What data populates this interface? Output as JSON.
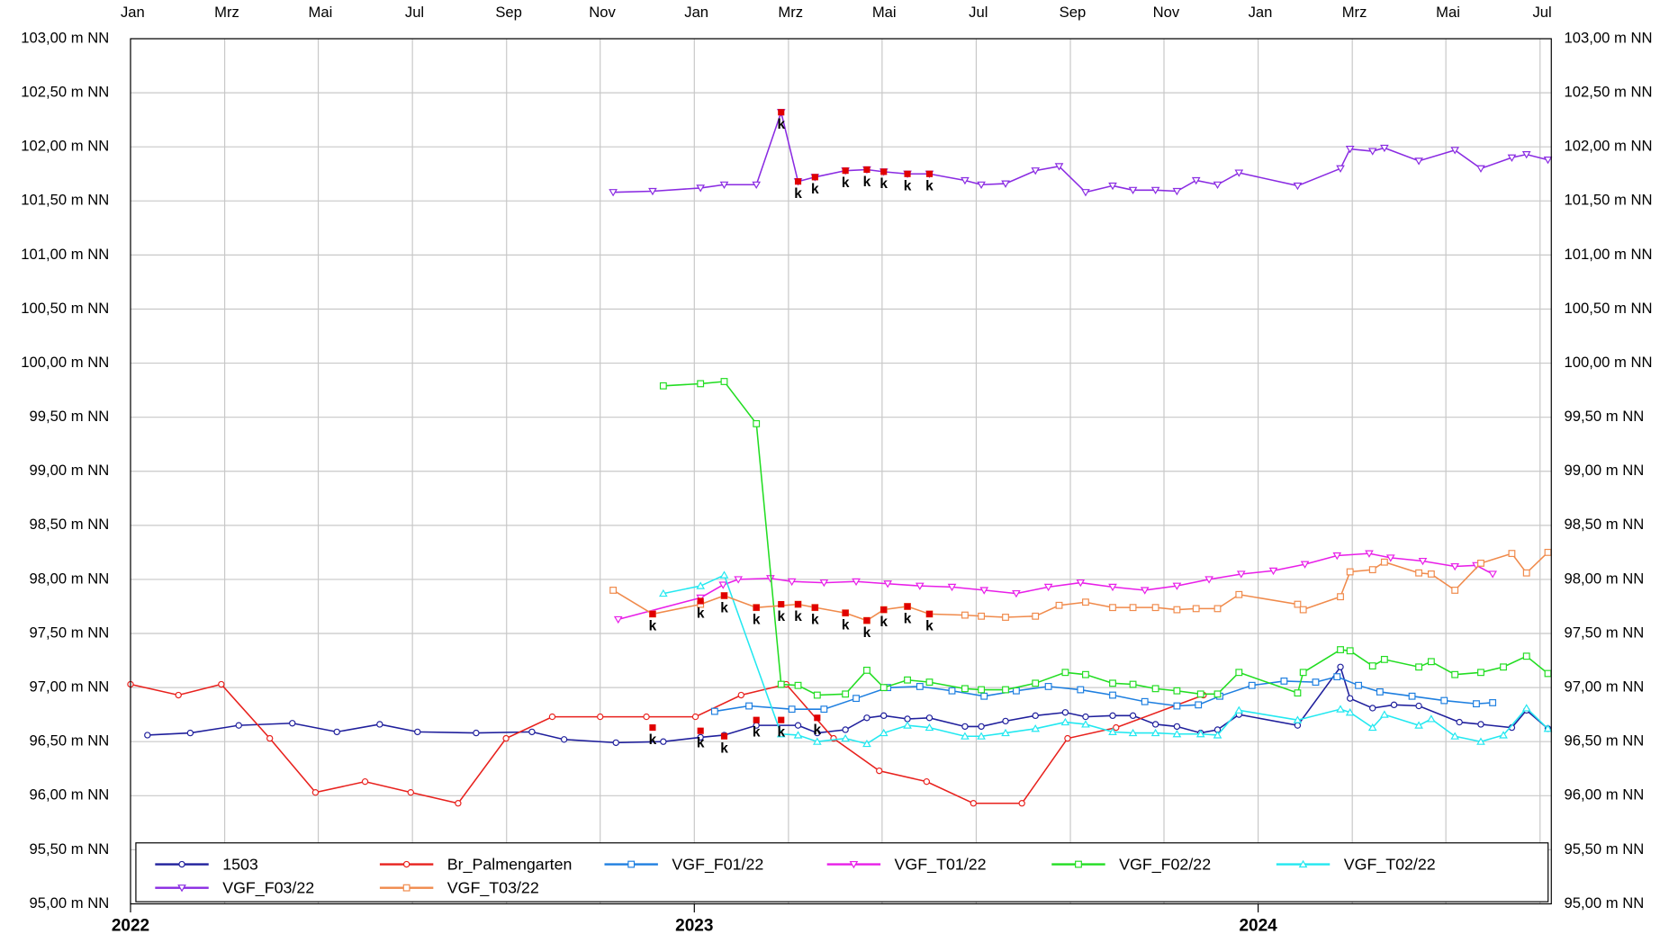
{
  "chart_data": {
    "type": "line",
    "xlim": [
      2022,
      2024.52
    ],
    "ylim": [
      95,
      103
    ],
    "grid": true,
    "xticks": [
      {
        "value": 2022,
        "label": "Jan"
      },
      {
        "value": 2022.167,
        "label": "Mrz"
      },
      {
        "value": 2022.333,
        "label": "Mai"
      },
      {
        "value": 2022.5,
        "label": "Jul"
      },
      {
        "value": 2022.667,
        "label": "Sep"
      },
      {
        "value": 2022.833,
        "label": "Nov"
      },
      {
        "value": 2023,
        "label": "Jan"
      },
      {
        "value": 2023.167,
        "label": "Mrz"
      },
      {
        "value": 2023.333,
        "label": "Mai"
      },
      {
        "value": 2023.5,
        "label": "Jul"
      },
      {
        "value": 2023.667,
        "label": "Sep"
      },
      {
        "value": 2023.833,
        "label": "Nov"
      },
      {
        "value": 2024,
        "label": "Jan"
      },
      {
        "value": 2024.167,
        "label": "Mrz"
      },
      {
        "value": 2024.333,
        "label": "Mai"
      },
      {
        "value": 2024.5,
        "label": "Jul"
      }
    ],
    "year_ticks": [
      2022,
      2023,
      2024
    ],
    "yticks": [
      {
        "value": 95,
        "label": "95,00 m NN"
      },
      {
        "value": 95.5,
        "label": "95,50 m NN"
      },
      {
        "value": 96,
        "label": "96,00 m NN"
      },
      {
        "value": 96.5,
        "label": "96,50 m NN"
      },
      {
        "value": 97,
        "label": "97,00 m NN"
      },
      {
        "value": 97.5,
        "label": "97,50 m NN"
      },
      {
        "value": 98,
        "label": "98,00 m NN"
      },
      {
        "value": 98.5,
        "label": "98,50 m NN"
      },
      {
        "value": 99,
        "label": "99,00 m NN"
      },
      {
        "value": 99.5,
        "label": "99,50 m NN"
      },
      {
        "value": 100,
        "label": "100,00 m NN"
      },
      {
        "value": 100.5,
        "label": "100,50 m NN"
      },
      {
        "value": 101,
        "label": "101,00 m NN"
      },
      {
        "value": 101.5,
        "label": "101,50 m NN"
      },
      {
        "value": 102,
        "label": "102,00 m NN"
      },
      {
        "value": 102.5,
        "label": "102,50 m NN"
      },
      {
        "value": 103,
        "label": "103,00 m NN"
      }
    ],
    "series": [
      {
        "name": "1503",
        "color": "#1f1f9c",
        "marker": "circle",
        "x": [
          2022.03,
          2022.106,
          2022.192,
          2022.287,
          2022.366,
          2022.442,
          2022.509,
          2022.613,
          2022.712,
          2022.769,
          2022.861,
          2022.945,
          2023.011,
          2023.053,
          2023.11,
          2023.184,
          2023.218,
          2023.268,
          2023.306,
          2023.336,
          2023.378,
          2023.417,
          2023.48,
          2023.509,
          2023.552,
          2023.605,
          2023.658,
          2023.694,
          2023.742,
          2023.778,
          2023.818,
          2023.856,
          2023.898,
          2023.928,
          2023.966,
          2024.07,
          2024.146,
          2024.163,
          2024.203,
          2024.241,
          2024.285,
          2024.357,
          2024.395,
          2024.45,
          2024.476,
          2024.514
        ],
        "values": [
          96.56,
          96.58,
          96.65,
          96.67,
          96.59,
          96.66,
          96.59,
          96.58,
          96.59,
          96.52,
          96.49,
          96.5,
          96.54,
          96.56,
          96.65,
          96.65,
          96.58,
          96.61,
          96.72,
          96.74,
          96.71,
          96.72,
          96.64,
          96.64,
          96.69,
          96.74,
          96.77,
          96.73,
          96.74,
          96.74,
          96.66,
          96.64,
          96.58,
          96.61,
          96.75,
          96.65,
          97.19,
          96.9,
          96.81,
          96.84,
          96.83,
          96.68,
          96.66,
          96.63,
          96.79,
          96.62
        ]
      },
      {
        "name": "Br_Palmengarten",
        "color": "#e8211d",
        "marker": "circle",
        "x": [
          2022.0,
          2022.085,
          2022.161,
          2022.247,
          2022.328,
          2022.416,
          2022.497,
          2022.581,
          2022.666,
          2022.748,
          2022.833,
          2022.915,
          2023.002,
          2023.083,
          2023.163,
          2023.247,
          2023.328,
          2023.412,
          2023.495,
          2023.581,
          2023.662,
          2023.748,
          2023.903
        ],
        "values": [
          97.03,
          96.93,
          97.03,
          96.53,
          96.03,
          96.13,
          96.03,
          95.93,
          96.53,
          96.73,
          96.73,
          96.73,
          96.73,
          96.93,
          97.03,
          96.53,
          96.23,
          96.13,
          95.93,
          95.93,
          96.53,
          96.63,
          96.93
        ]
      },
      {
        "name": "VGF_F01/22",
        "color": "#1e7fe0",
        "marker": "square",
        "x": [
          2023.036,
          2023.097,
          2023.173,
          2023.23,
          2023.287,
          2023.343,
          2023.4,
          2023.457,
          2023.514,
          2023.571,
          2023.628,
          2023.685,
          2023.742,
          2023.799,
          2023.856,
          2023.894,
          2023.932,
          2023.989,
          2024.046,
          2024.102,
          2024.14,
          2024.178,
          2024.216,
          2024.273,
          2024.33,
          2024.387,
          2024.416
        ],
        "values": [
          96.78,
          96.83,
          96.8,
          96.8,
          96.9,
          97.0,
          97.01,
          96.97,
          96.92,
          96.97,
          97.01,
          96.98,
          96.93,
          96.87,
          96.83,
          96.84,
          96.92,
          97.02,
          97.06,
          97.05,
          97.1,
          97.02,
          96.96,
          96.92,
          96.88,
          96.85,
          96.86
        ]
      },
      {
        "name": "VGF_T01/22",
        "color": "#e81ee8",
        "marker": "tri-down",
        "x": [
          2022.865,
          2023.011,
          2023.051,
          2023.078,
          2023.135,
          2023.173,
          2023.23,
          2023.287,
          2023.343,
          2023.4,
          2023.457,
          2023.514,
          2023.571,
          2023.628,
          2023.685,
          2023.742,
          2023.799,
          2023.856,
          2023.913,
          2023.97,
          2024.027,
          2024.083,
          2024.14,
          2024.197,
          2024.235,
          2024.292,
          2024.349,
          2024.387,
          2024.416
        ],
        "values": [
          97.63,
          97.83,
          97.95,
          98.0,
          98.01,
          97.98,
          97.97,
          97.98,
          97.96,
          97.94,
          97.93,
          97.9,
          97.87,
          97.93,
          97.97,
          97.93,
          97.9,
          97.94,
          98.0,
          98.05,
          98.08,
          98.14,
          98.22,
          98.24,
          98.2,
          98.17,
          98.12,
          98.13,
          98.05
        ]
      },
      {
        "name": "VGF_F02/22",
        "color": "#22dd22",
        "marker": "square",
        "x": [
          2022.945,
          2023.011,
          2023.053,
          2023.11,
          2023.154,
          2023.184,
          2023.218,
          2023.268,
          2023.306,
          2023.336,
          2023.378,
          2023.417,
          2023.48,
          2023.509,
          2023.552,
          2023.605,
          2023.658,
          2023.694,
          2023.742,
          2023.778,
          2023.818,
          2023.856,
          2023.898,
          2023.928,
          2023.966,
          2024.07,
          2024.08,
          2024.146,
          2024.163,
          2024.203,
          2024.224,
          2024.285,
          2024.307,
          2024.349,
          2024.395,
          2024.435,
          2024.476,
          2024.514
        ],
        "values": [
          99.79,
          99.81,
          99.83,
          99.44,
          97.03,
          97.02,
          96.93,
          96.94,
          97.16,
          97.0,
          97.07,
          97.05,
          96.99,
          96.98,
          96.98,
          97.04,
          97.14,
          97.12,
          97.04,
          97.03,
          96.99,
          96.97,
          96.94,
          96.94,
          97.14,
          96.95,
          97.14,
          97.35,
          97.34,
          97.2,
          97.26,
          97.19,
          97.24,
          97.12,
          97.14,
          97.19,
          97.29,
          97.13
        ]
      },
      {
        "name": "VGF_T02/22",
        "color": "#22e8f0",
        "marker": "tri-up",
        "x": [
          2022.945,
          2023.011,
          2023.053,
          2023.154,
          2023.184,
          2023.218,
          2023.268,
          2023.306,
          2023.336,
          2023.378,
          2023.417,
          2023.48,
          2023.509,
          2023.552,
          2023.605,
          2023.658,
          2023.694,
          2023.742,
          2023.778,
          2023.818,
          2023.856,
          2023.898,
          2023.928,
          2023.966,
          2024.07,
          2024.146,
          2024.163,
          2024.203,
          2024.224,
          2024.285,
          2024.307,
          2024.349,
          2024.395,
          2024.435,
          2024.476,
          2024.514
        ],
        "values": [
          97.87,
          97.94,
          98.04,
          96.57,
          96.56,
          96.5,
          96.53,
          96.48,
          96.58,
          96.65,
          96.63,
          96.55,
          96.55,
          96.58,
          96.62,
          96.68,
          96.66,
          96.59,
          96.58,
          96.58,
          96.57,
          96.57,
          96.56,
          96.79,
          96.7,
          96.8,
          96.77,
          96.63,
          96.75,
          96.65,
          96.71,
          96.55,
          96.5,
          96.56,
          96.81,
          96.62
        ]
      },
      {
        "name": "VGF_F03/22",
        "color": "#8a2be2",
        "marker": "tri-down",
        "x": [
          2022.856,
          2022.926,
          2023.011,
          2023.053,
          2023.11,
          2023.154,
          2023.184,
          2023.214,
          2023.268,
          2023.306,
          2023.336,
          2023.378,
          2023.417,
          2023.48,
          2023.509,
          2023.552,
          2023.605,
          2023.647,
          2023.694,
          2023.742,
          2023.778,
          2023.818,
          2023.856,
          2023.89,
          2023.928,
          2023.966,
          2024.07,
          2024.146,
          2024.163,
          2024.203,
          2024.224,
          2024.285,
          2024.349,
          2024.395,
          2024.45,
          2024.476,
          2024.514
        ],
        "values": [
          101.58,
          101.59,
          101.62,
          101.65,
          101.65,
          102.32,
          101.68,
          101.72,
          101.78,
          101.79,
          101.77,
          101.75,
          101.75,
          101.69,
          101.65,
          101.66,
          101.78,
          101.82,
          101.58,
          101.64,
          101.6,
          101.6,
          101.59,
          101.69,
          101.65,
          101.76,
          101.64,
          101.8,
          101.98,
          101.96,
          101.99,
          101.87,
          101.97,
          101.8,
          101.9,
          101.93,
          101.88
        ]
      },
      {
        "name": "VGF_T03/22",
        "color": "#f08a4b",
        "marker": "square",
        "x": [
          2022.856,
          2022.926,
          2023.011,
          2023.053,
          2023.11,
          2023.184,
          2023.214,
          2023.268,
          2023.306,
          2023.336,
          2023.378,
          2023.417,
          2023.48,
          2023.509,
          2023.552,
          2023.605,
          2023.647,
          2023.694,
          2023.742,
          2023.778,
          2023.818,
          2023.856,
          2023.89,
          2023.928,
          2023.966,
          2024.07,
          2024.08,
          2024.146,
          2024.163,
          2024.203,
          2024.224,
          2024.285,
          2024.307,
          2024.349,
          2024.395,
          2024.45,
          2024.476,
          2024.514
        ],
        "values": [
          97.9,
          97.68,
          97.77,
          97.85,
          97.74,
          97.77,
          97.74,
          97.69,
          97.62,
          97.72,
          97.75,
          97.68,
          97.67,
          97.66,
          97.65,
          97.66,
          97.76,
          97.79,
          97.74,
          97.74,
          97.74,
          97.72,
          97.73,
          97.73,
          97.86,
          97.77,
          97.72,
          97.84,
          98.07,
          98.09,
          98.16,
          98.06,
          98.05,
          97.9,
          98.15,
          98.24,
          98.06,
          98.25
        ]
      }
    ],
    "annotations": [
      {
        "text": "k",
        "x": 2023.154,
        "y": 102.32
      },
      {
        "text": "k",
        "x": 2023.184,
        "y": 101.68
      },
      {
        "text": "k",
        "x": 2023.214,
        "y": 101.72
      },
      {
        "text": "k",
        "x": 2023.268,
        "y": 101.78
      },
      {
        "text": "k",
        "x": 2023.306,
        "y": 101.79
      },
      {
        "text": "k",
        "x": 2023.336,
        "y": 101.77
      },
      {
        "text": "k",
        "x": 2023.378,
        "y": 101.75
      },
      {
        "text": "k",
        "x": 2023.417,
        "y": 101.75
      },
      {
        "text": "k",
        "x": 2022.926,
        "y": 97.68
      },
      {
        "text": "k",
        "x": 2023.011,
        "y": 97.8
      },
      {
        "text": "k",
        "x": 2023.053,
        "y": 97.85
      },
      {
        "text": "k",
        "x": 2023.11,
        "y": 97.74
      },
      {
        "text": "k",
        "x": 2023.154,
        "y": 97.77
      },
      {
        "text": "k",
        "x": 2023.184,
        "y": 97.77
      },
      {
        "text": "k",
        "x": 2023.214,
        "y": 97.74
      },
      {
        "text": "k",
        "x": 2023.268,
        "y": 97.69
      },
      {
        "text": "k",
        "x": 2023.306,
        "y": 97.62
      },
      {
        "text": "k",
        "x": 2023.336,
        "y": 97.72
      },
      {
        "text": "k",
        "x": 2023.378,
        "y": 97.75
      },
      {
        "text": "k",
        "x": 2023.417,
        "y": 97.68
      },
      {
        "text": "k",
        "x": 2022.926,
        "y": 96.63
      },
      {
        "text": "k",
        "x": 2023.011,
        "y": 96.6
      },
      {
        "text": "k",
        "x": 2023.053,
        "y": 96.55
      },
      {
        "text": "k",
        "x": 2023.11,
        "y": 96.7
      },
      {
        "text": "k",
        "x": 2023.154,
        "y": 96.7
      },
      {
        "text": "k",
        "x": 2023.218,
        "y": 96.72
      }
    ],
    "annotation_color": "#e00000"
  }
}
